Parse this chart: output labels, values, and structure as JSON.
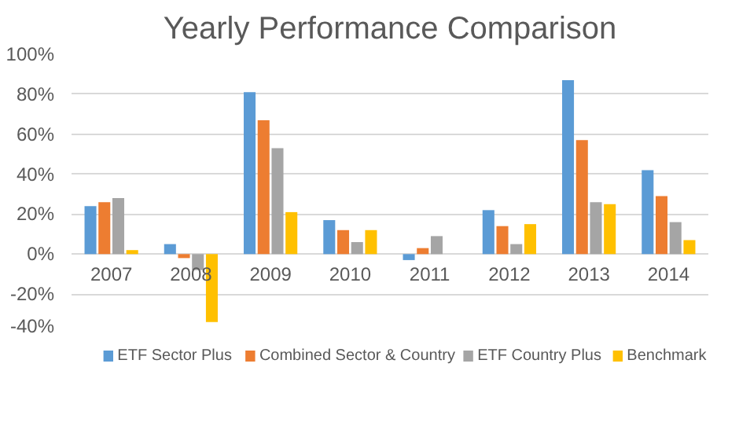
{
  "chart_data": {
    "type": "bar",
    "title": "Yearly Performance Comparison",
    "categories": [
      "2007",
      "2008",
      "2009",
      "2010",
      "2011",
      "2012",
      "2013",
      "2014"
    ],
    "series": [
      {
        "name": "ETF Sector Plus",
        "color": "#5b9bd5",
        "values": [
          24,
          5,
          81,
          17,
          -3,
          22,
          87,
          42
        ]
      },
      {
        "name": "Combined Sector & Country",
        "color": "#ed7d31",
        "values": [
          26,
          -2,
          67,
          12,
          3,
          14,
          57,
          29
        ]
      },
      {
        "name": "ETF Country Plus",
        "color": "#a5a5a5",
        "values": [
          28,
          -8,
          53,
          6,
          9,
          5,
          26,
          16
        ]
      },
      {
        "name": "Benchmark",
        "color": "#ffc000",
        "values": [
          2,
          -34,
          21,
          12,
          null,
          15,
          25,
          7
        ]
      }
    ],
    "ylim": [
      -40,
      100
    ],
    "yticks": [
      {
        "value": -40,
        "label": "-40%"
      },
      {
        "value": -20,
        "label": "-20%"
      },
      {
        "value": 0,
        "label": "0%"
      },
      {
        "value": 20,
        "label": "20%"
      },
      {
        "value": 40,
        "label": "40%"
      },
      {
        "value": 60,
        "label": "60%"
      },
      {
        "value": 80,
        "label": "80%"
      },
      {
        "value": 100,
        "label": "100%"
      }
    ],
    "grid": "y",
    "legend": "bottom"
  }
}
